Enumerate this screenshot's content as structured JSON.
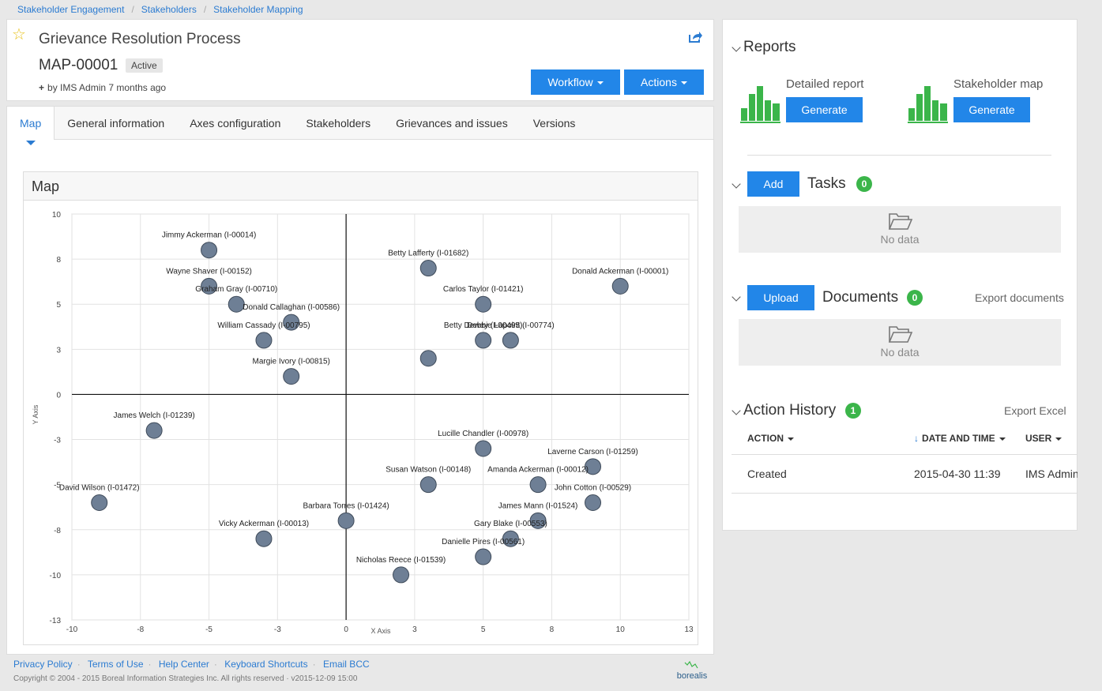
{
  "breadcrumb": [
    "Stakeholder Engagement",
    "Stakeholders",
    "Stakeholder Mapping"
  ],
  "header": {
    "title": "Grievance Resolution Process",
    "record_id": "MAP-00001",
    "status": "Active",
    "byline": "by IMS Admin 7 months ago",
    "workflow_label": "Workflow",
    "actions_label": "Actions"
  },
  "tabs": [
    {
      "label": "Map",
      "active": true
    },
    {
      "label": "General information",
      "active": false
    },
    {
      "label": "Axes configuration",
      "active": false
    },
    {
      "label": "Stakeholders",
      "active": false
    },
    {
      "label": "Grievances and issues",
      "active": false
    },
    {
      "label": "Versions",
      "active": false
    }
  ],
  "map": {
    "heading": "Map"
  },
  "chart_data": {
    "type": "scatter",
    "xlabel": "X Axis",
    "ylabel": "Y Axis",
    "xlim": [
      -10,
      12.5
    ],
    "ylim": [
      -12.5,
      10
    ],
    "xticks": [
      "-10",
      "-8",
      "-5",
      "-3",
      "0",
      "3",
      "5",
      "8",
      "10",
      "13"
    ],
    "yticks": [
      "10",
      "8",
      "5",
      "3",
      "0",
      "-3",
      "-5",
      "-8",
      "-10",
      "-13"
    ],
    "grid": true,
    "points": [
      {
        "label": "Jimmy Ackerman (I-00014)",
        "x": -5,
        "y": 8
      },
      {
        "label": "Betty Lafferty (I-01682)",
        "x": 3,
        "y": 7
      },
      {
        "label": "Wayne Shaver (I-00152)",
        "x": -5,
        "y": 6
      },
      {
        "label": "Donald Ackerman (I-00001)",
        "x": 10,
        "y": 6
      },
      {
        "label": "Graham Gray (I-00710)",
        "x": -4,
        "y": 5
      },
      {
        "label": "Carlos Taylor (I-01421)",
        "x": 5,
        "y": 5
      },
      {
        "label": "Donald Callaghan (I-00586)",
        "x": -2,
        "y": 4
      },
      {
        "label": "William Cassady (I-00795)",
        "x": -3,
        "y": 3
      },
      {
        "label": "Betty Dewey (I-00495)",
        "x": 5,
        "y": 3
      },
      {
        "label": "Debbie Lapoint (I-00774)",
        "x": 6,
        "y": 3
      },
      {
        "label": "",
        "x": 3,
        "y": 2
      },
      {
        "label": "Margie Ivory (I-00815)",
        "x": -2,
        "y": 1
      },
      {
        "label": "James Welch (I-01239)",
        "x": -7,
        "y": -2
      },
      {
        "label": "Lucille Chandler (I-00978)",
        "x": 5,
        "y": -3
      },
      {
        "label": "Laverne Carson (I-01259)",
        "x": 9,
        "y": -4
      },
      {
        "label": "Susan Watson (I-00148)",
        "x": 3,
        "y": -5
      },
      {
        "label": "Amanda Ackerman (I-00012)",
        "x": 7,
        "y": -5
      },
      {
        "label": "David Wilson (I-01472)",
        "x": -9,
        "y": -6
      },
      {
        "label": "John Cotton (I-00529)",
        "x": 9,
        "y": -6
      },
      {
        "label": "Barbara Torres (I-01424)",
        "x": 0,
        "y": -7
      },
      {
        "label": "James Mann (I-01524)",
        "x": 7,
        "y": -7
      },
      {
        "label": "Vicky Ackerman (I-00013)",
        "x": -3,
        "y": -8
      },
      {
        "label": "Gary Blake (I-00553)",
        "x": 6,
        "y": -8
      },
      {
        "label": "Danielle Pires (I-00561)",
        "x": 5,
        "y": -9
      },
      {
        "label": "Nicholas Reece (I-01539)",
        "x": 2,
        "y": -10
      }
    ]
  },
  "sidebar": {
    "reports_title": "Reports",
    "reports": [
      {
        "label": "Detailed report",
        "button": "Generate"
      },
      {
        "label": "Stakeholder map",
        "button": "Generate"
      }
    ],
    "tasks": {
      "add_label": "Add",
      "title": "Tasks",
      "count": "0",
      "empty": "No data"
    },
    "documents": {
      "upload_label": "Upload",
      "title": "Documents",
      "count": "0",
      "export": "Export documents",
      "empty": "No data"
    },
    "history": {
      "title": "Action History",
      "count": "1",
      "export": "Export Excel",
      "columns": [
        "ACTION",
        "DATE AND TIME",
        "USER"
      ],
      "rows": [
        [
          "Created",
          "2015-04-30 11:39",
          "IMS Admin"
        ]
      ]
    }
  },
  "footer": {
    "links": [
      "Privacy Policy",
      "Terms of Use",
      "Help Center",
      "Keyboard Shortcuts",
      "Email BCC"
    ],
    "copyright": "Copyright © 2004 - 2015 Boreal Information Strategies Inc. All rights reserved",
    "version": "v2015-12-09 15:00",
    "logo_text": "borealis"
  },
  "colors": {
    "accent": "#2286e8",
    "badge": "#3bb54a",
    "marker": "#6e7f95"
  }
}
